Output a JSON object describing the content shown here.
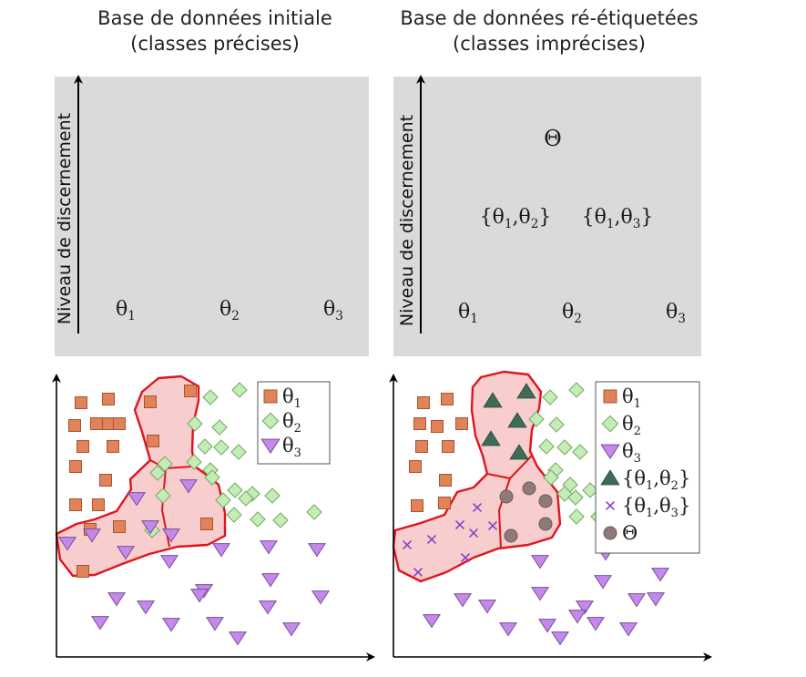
{
  "titles": {
    "left_line1": "Base de données initiale",
    "left_line2": "(classes précises)",
    "right_line1": "Base de données ré-étiquetées",
    "right_line2": "(classes imprécises)"
  },
  "y_axis_label": "Niveau de discernement",
  "left_top_panel": {
    "classes": [
      {
        "base": "θ",
        "sub": "1"
      },
      {
        "base": "θ",
        "sub": "2"
      },
      {
        "base": "θ",
        "sub": "3"
      }
    ]
  },
  "right_top_panel": {
    "classes": [
      {
        "base": "θ",
        "sub": "1"
      },
      {
        "base": "θ",
        "sub": "2"
      },
      {
        "base": "θ",
        "sub": "3"
      }
    ],
    "pairs": [
      {
        "open": "{",
        "a": "θ",
        "a_sub": "1",
        "sep": ",",
        "b": "θ",
        "b_sub": "2",
        "close": "}"
      },
      {
        "open": "{",
        "a": "θ",
        "a_sub": "1",
        "sep": ",",
        "b": "θ",
        "b_sub": "3",
        "close": "}"
      }
    ],
    "top": "Θ"
  },
  "left_legend": [
    {
      "symbol": "square",
      "base": "θ",
      "sub": "1"
    },
    {
      "symbol": "diamond",
      "base": "θ",
      "sub": "2"
    },
    {
      "symbol": "triangle-down",
      "base": "θ",
      "sub": "3"
    }
  ],
  "right_legend": [
    {
      "symbol": "square",
      "base": "θ",
      "sub": "1"
    },
    {
      "symbol": "diamond",
      "base": "θ",
      "sub": "2"
    },
    {
      "symbol": "triangle-down",
      "base": "θ",
      "sub": "3"
    },
    {
      "symbol": "triangle-up",
      "open": "{",
      "a": "θ",
      "a_sub": "1",
      "sep": ",",
      "b": "θ",
      "b_sub": "2",
      "close": "}"
    },
    {
      "symbol": "cross",
      "open": "{",
      "a": "θ",
      "a_sub": "1",
      "sep": ",",
      "b": "θ",
      "b_sub": "3",
      "close": "}"
    },
    {
      "symbol": "circle",
      "base": "Θ"
    }
  ],
  "colors": {
    "panel_bg": "#d9dadc",
    "square": "#e0825a",
    "square_stroke": "#a8542f",
    "diamond": "#c5ecb7",
    "diamond_stroke": "#6ea85c",
    "triangle": "#c489ea",
    "triangle_stroke": "#7a4f99",
    "triangle_up": "#3f6c57",
    "cross": "#8a3fcc",
    "circle": "#8e7a7a",
    "region_fill": "#f7c4c4",
    "region_stroke": "#e0141c"
  }
}
